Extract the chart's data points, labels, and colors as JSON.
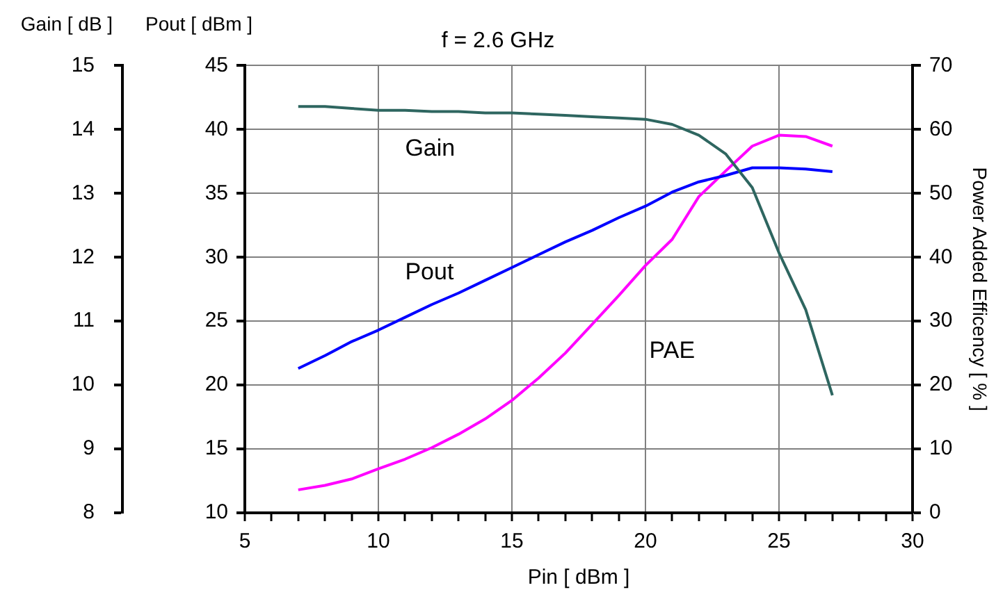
{
  "chart_data": {
    "type": "line",
    "title": "f = 2.6 GHz",
    "xlabel": "Pin [ dBm ]",
    "ylabel": "Pout [ dBm ]",
    "y2label": "Power Added Efficency [ % ]",
    "y3label": "Gain [ dB ]",
    "x": [
      7,
      8,
      9,
      10,
      11,
      12,
      13,
      14,
      15,
      16,
      17,
      18,
      19,
      20,
      21,
      22,
      23,
      24,
      25,
      26,
      27
    ],
    "series": [
      {
        "name": "Gain",
        "color": "#2e6660",
        "axis": "y3",
        "values": [
          14.36,
          14.36,
          14.33,
          14.3,
          14.3,
          14.28,
          14.28,
          14.26,
          14.26,
          14.24,
          14.22,
          14.2,
          14.18,
          14.16,
          14.08,
          13.91,
          13.62,
          13.09,
          12.07,
          11.18,
          9.84
        ]
      },
      {
        "name": "Pout",
        "color": "#0000ff",
        "values": [
          21.3,
          22.3,
          23.4,
          24.3,
          25.3,
          26.3,
          27.2,
          28.2,
          29.2,
          30.2,
          31.2,
          32.1,
          33.1,
          34.0,
          35.1,
          35.9,
          36.4,
          37.0,
          37.0,
          36.9,
          36.7
        ]
      },
      {
        "name": "PAE",
        "color": "#ff00ff",
        "axis": "y2",
        "values": [
          3.6,
          4.3,
          5.3,
          6.9,
          8.4,
          10.2,
          12.3,
          14.7,
          17.6,
          21.1,
          25.0,
          29.5,
          34.0,
          38.7,
          42.8,
          49.5,
          53.5,
          57.4,
          59.1,
          58.9,
          57.4
        ]
      }
    ],
    "xlim": [
      5,
      30
    ],
    "xticks": [
      5,
      {
        "value": 6,
        "label": null
      },
      {
        "value": 7,
        "label": null
      },
      {
        "value": 8,
        "label": null
      },
      {
        "value": 9,
        "label": null
      },
      10,
      {
        "value": 11,
        "label": null
      },
      {
        "value": 12,
        "label": null
      },
      {
        "value": 13,
        "label": null
      },
      {
        "value": 14,
        "label": null
      },
      15,
      {
        "value": 16,
        "label": null
      },
      {
        "value": 17,
        "label": null
      },
      {
        "value": 18,
        "label": null
      },
      {
        "value": 19,
        "label": null
      },
      20,
      {
        "value": 21,
        "label": null
      },
      {
        "value": 22,
        "label": null
      },
      {
        "value": 23,
        "label": null
      },
      {
        "value": 24,
        "label": null
      },
      25,
      {
        "value": 26,
        "label": null
      },
      {
        "value": 27,
        "label": null
      },
      {
        "value": 28,
        "label": null
      },
      {
        "value": 29,
        "label": null
      },
      30
    ],
    "ylim": [
      10,
      45
    ],
    "yticks": [
      10,
      15,
      20,
      25,
      30,
      35,
      40,
      45
    ],
    "y2lim": [
      0,
      70
    ],
    "y2ticks": [
      0,
      10,
      20,
      30,
      40,
      50,
      60,
      70
    ],
    "y3lim": [
      8,
      15
    ],
    "y3ticks": [
      8,
      9,
      10,
      11,
      12,
      13,
      14,
      15
    ],
    "grid": true,
    "legend": false,
    "marker": "none",
    "line_style": "solid"
  }
}
